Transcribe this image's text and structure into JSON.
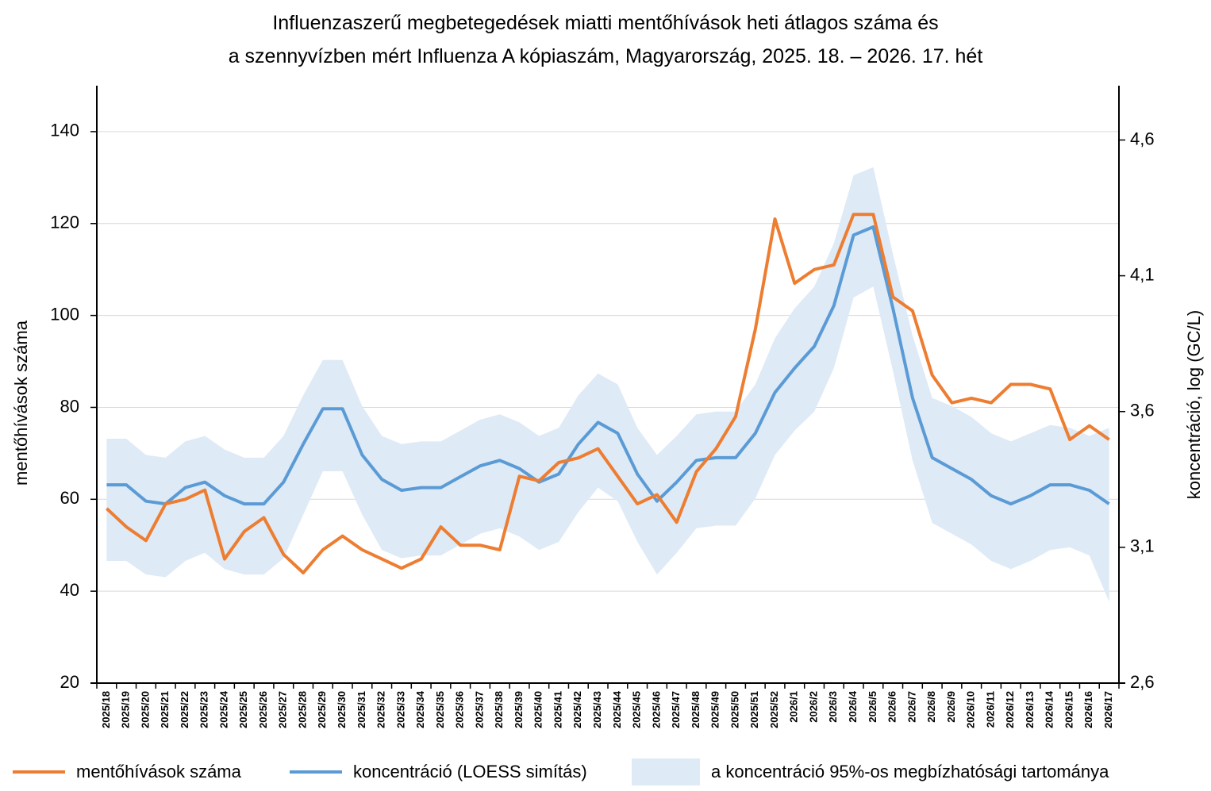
{
  "title": "Influenzaszerű megbetegedések miatti mentőhívások heti átlagos száma és",
  "subtitle": "a szennyvízben mért Influenza A kópiaszám, Magyarország, 2025. 18. – 2026. 17. hét",
  "colors": {
    "calls": "#ED7D31",
    "conc": "#5B9BD5",
    "band": "#DEEAF6"
  },
  "legend": {
    "calls": "mentőhívások száma",
    "conc": "koncentráció (LOESS simítás)",
    "band": "a koncentráció 95%-os megbízhatósági tartománya"
  },
  "chart_data": {
    "type": "line",
    "title": "Influenzaszerű megbetegedések miatti mentőhívások heti átlagos száma és a szennyvízben mért Influenza A kópiaszám, Magyarország, 2025. 18. – 2026. 17. hét",
    "ylabel": "mentőhívások száma",
    "y2label": "koncentráció, log (GC/L)",
    "ylim": [
      20,
      150
    ],
    "y2lim": [
      2.6,
      4.8
    ],
    "yticks": [
      "20",
      "40",
      "60",
      "80",
      "100",
      "120",
      "140"
    ],
    "y2ticks": [
      "2,6",
      "3,1",
      "3,6",
      "4,1",
      "4,6"
    ],
    "grid": true,
    "legend_position": "bottom",
    "categories": [
      "2025/18",
      "2025/19",
      "2025/20",
      "2025/21",
      "2025/22",
      "2025/23",
      "2025/24",
      "2025/25",
      "2025/26",
      "2025/27",
      "2025/28",
      "2025/29",
      "2025/30",
      "2025/31",
      "2025/32",
      "2025/33",
      "2025/34",
      "2025/35",
      "2025/36",
      "2025/37",
      "2025/38",
      "2025/39",
      "2025/40",
      "2025/41",
      "2025/42",
      "2025/43",
      "2025/44",
      "2025/45",
      "2025/46",
      "2025/47",
      "2025/48",
      "2025/49",
      "2025/50",
      "2025/51",
      "2025/52",
      "2026/1",
      "2026/2",
      "2026/3",
      "2026/4",
      "2026/5",
      "2026/6",
      "2026/7",
      "2026/8",
      "2026/9",
      "2026/10",
      "2026/11",
      "2026/12",
      "2026/13",
      "2026/14",
      "2026/15",
      "2026/16",
      "2026/17"
    ],
    "series": [
      {
        "name": "mentőhívások száma",
        "axis": "left",
        "values": [
          58,
          54,
          51,
          59,
          60,
          62,
          47,
          53,
          56,
          48,
          44,
          49,
          52,
          49,
          47,
          45,
          47,
          54,
          50,
          50,
          49,
          65,
          64,
          68,
          69,
          71,
          65,
          59,
          61,
          55,
          66,
          71,
          78,
          97,
          121,
          107,
          110,
          111,
          122,
          122,
          104,
          101,
          87,
          81,
          82,
          81,
          85,
          85,
          84,
          73,
          76,
          73
        ]
      },
      {
        "name": "koncentráció (LOESS simítás)",
        "axis": "right",
        "values": [
          3.33,
          3.33,
          3.27,
          3.26,
          3.32,
          3.34,
          3.29,
          3.26,
          3.26,
          3.34,
          3.48,
          3.61,
          3.61,
          3.44,
          3.35,
          3.31,
          3.32,
          3.32,
          3.36,
          3.4,
          3.42,
          3.39,
          3.34,
          3.37,
          3.48,
          3.56,
          3.52,
          3.37,
          3.27,
          3.34,
          3.42,
          3.43,
          3.43,
          3.52,
          3.67,
          3.76,
          3.84,
          3.99,
          4.25,
          4.28,
          3.98,
          3.65,
          3.43,
          3.39,
          3.35,
          3.29,
          3.26,
          3.29,
          3.33,
          3.33,
          3.31,
          3.26
        ]
      },
      {
        "name": "a koncentráció 95%-os megbízhatósági tartománya",
        "axis": "right",
        "type": "band",
        "lower": [
          3.05,
          3.05,
          3.0,
          2.99,
          3.05,
          3.08,
          3.02,
          3.0,
          3.0,
          3.06,
          3.22,
          3.38,
          3.38,
          3.22,
          3.09,
          3.06,
          3.07,
          3.07,
          3.11,
          3.15,
          3.17,
          3.14,
          3.09,
          3.12,
          3.23,
          3.32,
          3.27,
          3.12,
          3.0,
          3.08,
          3.17,
          3.18,
          3.18,
          3.28,
          3.44,
          3.53,
          3.6,
          3.76,
          4.02,
          4.06,
          3.75,
          3.42,
          3.19,
          3.15,
          3.11,
          3.05,
          3.02,
          3.05,
          3.09,
          3.1,
          3.07,
          2.9
        ],
        "upper": [
          3.5,
          3.5,
          3.44,
          3.43,
          3.49,
          3.51,
          3.46,
          3.43,
          3.43,
          3.51,
          3.66,
          3.79,
          3.79,
          3.62,
          3.51,
          3.48,
          3.49,
          3.49,
          3.53,
          3.57,
          3.59,
          3.56,
          3.51,
          3.54,
          3.66,
          3.74,
          3.7,
          3.54,
          3.44,
          3.51,
          3.59,
          3.6,
          3.6,
          3.7,
          3.87,
          3.98,
          4.06,
          4.22,
          4.47,
          4.5,
          4.18,
          3.88,
          3.65,
          3.62,
          3.58,
          3.52,
          3.49,
          3.52,
          3.55,
          3.54,
          3.51,
          3.54
        ]
      }
    ]
  }
}
